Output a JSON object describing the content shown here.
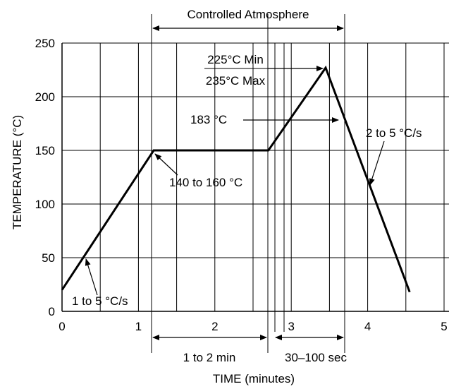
{
  "chart_data": {
    "type": "line",
    "title": "",
    "xlabel": "TIME (minutes)",
    "ylabel": "TEMPERATURE (°C)",
    "xlim": [
      0,
      5
    ],
    "ylim": [
      0,
      250
    ],
    "x_ticks": [
      "0",
      "1",
      "2",
      "3",
      "4",
      "5"
    ],
    "y_ticks": [
      "0",
      "50",
      "100",
      "150",
      "200",
      "250"
    ],
    "grid": true,
    "series": [
      {
        "x": [
          0,
          1.2,
          2.7,
          3.45,
          4.55
        ],
        "y": [
          20,
          150,
          150,
          227,
          18
        ]
      }
    ],
    "annotations": {
      "controlled_atmosphere": "Controlled Atmosphere",
      "peak_min": "225°C Min",
      "peak_max": "235°C Max",
      "liquidus": "183 °C",
      "cool_rate": "2 to 5 °C/s",
      "soak_temp": "140 to 160 °C",
      "ramp_rate": "1 to 5 °C/s",
      "soak_time": "1 to 2 min",
      "reflow_time": "30–100 sec"
    }
  },
  "colors": {
    "line": "#000000",
    "grid": "#000000",
    "background": "#ffffff"
  }
}
